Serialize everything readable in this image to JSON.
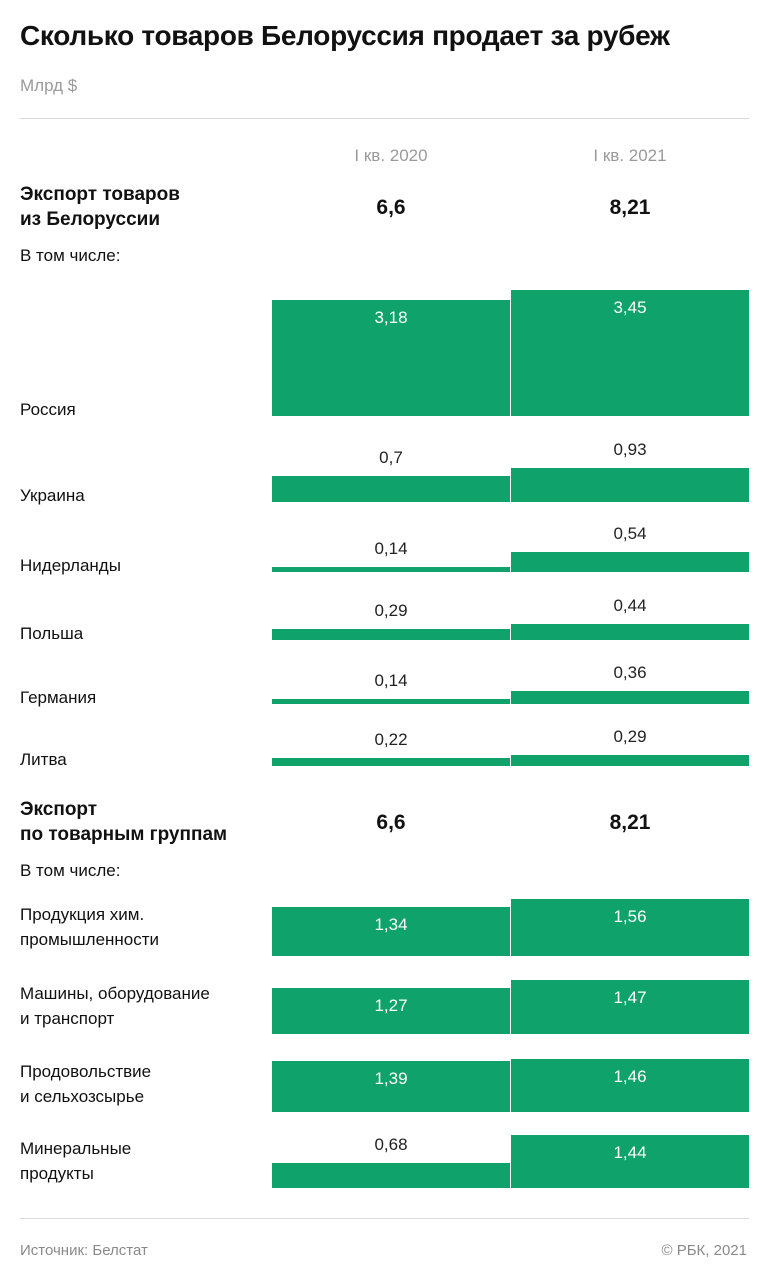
{
  "title": "Сколько товаров Белоруссия продает за рубеж",
  "unit": "Млрд $",
  "columns": [
    "I кв. 2020",
    "I кв. 2021"
  ],
  "source": "Источник: Белстат",
  "copyright": "© РБК, 2021",
  "accent_color": "#0fa36b",
  "chart_data": {
    "type": "bar",
    "title": "Сколько товаров Белоруссия продает за рубеж",
    "ylabel": "Млрд $",
    "series": [
      {
        "name": "I кв. 2020"
      },
      {
        "name": "I кв. 2021"
      }
    ],
    "sections": [
      {
        "label": "Экспорт товаров из Белоруссии",
        "label_lines": [
          "Экспорт товаров",
          "из Белоруссии"
        ],
        "totals": [
          "6,6",
          "8,21"
        ],
        "sub": "В том числе:",
        "categories": [
          {
            "label": "Россия",
            "values": [
              3.18,
              3.45
            ],
            "text": [
              "3,18",
              "3,45"
            ]
          },
          {
            "label": "Украина",
            "values": [
              0.7,
              0.93
            ],
            "text": [
              "0,7",
              "0,93"
            ]
          },
          {
            "label": "Нидерланды",
            "values": [
              0.14,
              0.54
            ],
            "text": [
              "0,14",
              "0,54"
            ]
          },
          {
            "label": "Польша",
            "values": [
              0.29,
              0.44
            ],
            "text": [
              "0,29",
              "0,44"
            ]
          },
          {
            "label": "Германия",
            "values": [
              0.14,
              0.36
            ],
            "text": [
              "0,14",
              "0,36"
            ]
          },
          {
            "label": "Литва",
            "values": [
              0.22,
              0.29
            ],
            "text": [
              "0,22",
              "0,29"
            ]
          }
        ]
      },
      {
        "label": "Экспорт по товарным группам",
        "label_lines": [
          "Экспорт",
          "по товарным группам"
        ],
        "totals": [
          "6,6",
          "8,21"
        ],
        "sub": "В том числе:",
        "categories": [
          {
            "label": "Продукция хим. промышленности",
            "label_lines": [
              "Продукция хим.",
              "промышленности"
            ],
            "values": [
              1.34,
              1.56
            ],
            "text": [
              "1,34",
              "1,56"
            ]
          },
          {
            "label": "Машины, оборудование и транспорт",
            "label_lines": [
              "Машины, оборудование",
              "и транспорт"
            ],
            "values": [
              1.27,
              1.47
            ],
            "text": [
              "1,27",
              "1,47"
            ]
          },
          {
            "label": "Продовольствие и сельхозсырье",
            "label_lines": [
              "Продовольствие",
              "и сельхозсырье"
            ],
            "values": [
              1.39,
              1.46
            ],
            "text": [
              "1,39",
              "1,46"
            ]
          },
          {
            "label": "Минеральные продукты",
            "label_lines": [
              "Минеральные",
              "продукты"
            ],
            "values": [
              0.68,
              1.44
            ],
            "text": [
              "0,68",
              "1,44"
            ]
          }
        ]
      }
    ]
  }
}
